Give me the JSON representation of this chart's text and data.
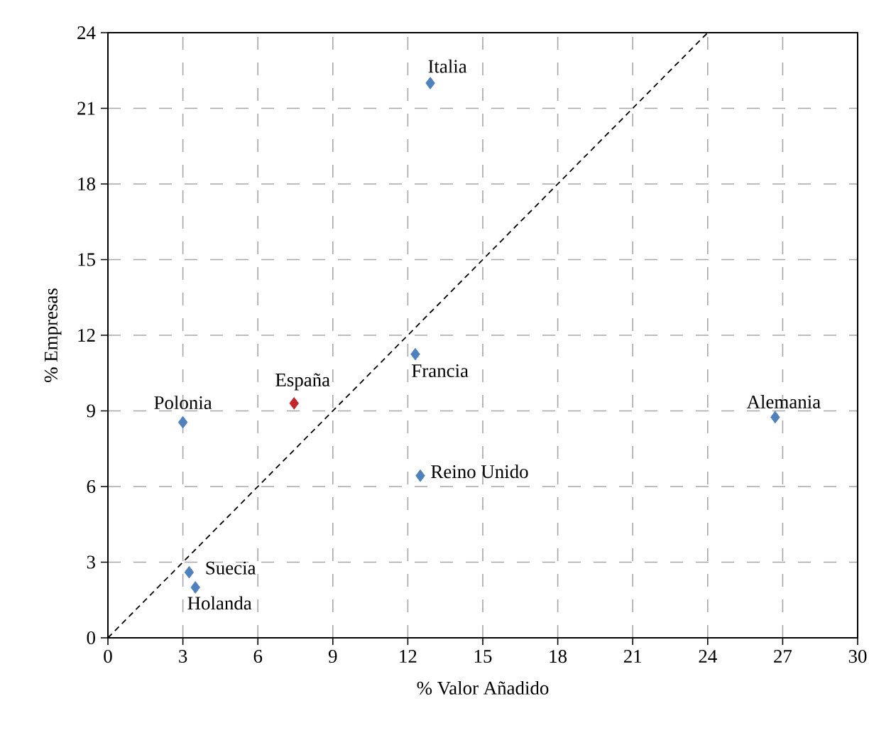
{
  "chart_data": {
    "type": "scatter",
    "xlabel": "% Valor Añadido",
    "ylabel": "% Empresas",
    "xlim": [
      0,
      30
    ],
    "ylim": [
      0,
      24
    ],
    "xticks": [
      0,
      3,
      6,
      9,
      12,
      15,
      18,
      21,
      24,
      27,
      30
    ],
    "yticks": [
      0,
      3,
      6,
      9,
      12,
      15,
      18,
      21,
      24
    ],
    "grid": true,
    "marker": "diamond",
    "series": [
      {
        "x": [
          12.9,
          12.3,
          7.45,
          3.0,
          26.7,
          12.5,
          3.25,
          3.5
        ],
        "values": [
          22.0,
          11.25,
          9.3,
          8.55,
          8.75,
          6.43,
          2.6,
          2.0
        ],
        "colors": [
          "#4f81bd",
          "#4f81bd",
          "#c0272d",
          "#4f81bd",
          "#4f81bd",
          "#4f81bd",
          "#4f81bd",
          "#4f81bd"
        ]
      },
      {
        "type": "line",
        "x": [
          0,
          24
        ],
        "values": [
          0,
          24
        ],
        "color": "#000000",
        "line_style": "dashed",
        "marker": "none"
      }
    ],
    "annotations": [
      {
        "text": "Italia",
        "x": 12.9,
        "y": 22.0
      },
      {
        "text": "Francia",
        "x": 12.3,
        "y": 11.25
      },
      {
        "text": "España",
        "x": 7.45,
        "y": 9.3
      },
      {
        "text": "Polonia",
        "x": 3.0,
        "y": 8.55
      },
      {
        "text": "Alemania",
        "x": 26.7,
        "y": 8.75
      },
      {
        "text": "Reino Unido",
        "x": 12.5,
        "y": 6.43
      },
      {
        "text": "Suecia",
        "x": 3.25,
        "y": 2.6
      },
      {
        "text": "Holanda",
        "x": 3.5,
        "y": 2.0
      }
    ]
  }
}
